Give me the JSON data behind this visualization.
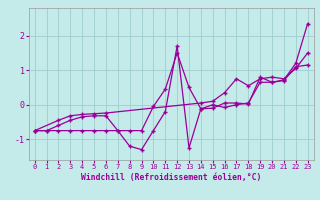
{
  "xlabel": "Windchill (Refroidissement éolien,°C)",
  "xlim": [
    -0.5,
    23.5
  ],
  "ylim": [
    -1.6,
    2.8
  ],
  "yticks": [
    -1,
    0,
    1,
    2
  ],
  "xticks": [
    0,
    1,
    2,
    3,
    4,
    5,
    6,
    7,
    8,
    9,
    10,
    11,
    12,
    13,
    14,
    15,
    16,
    17,
    18,
    19,
    20,
    21,
    22,
    23
  ],
  "bg_color": "#c5eaea",
  "line_color": "#990099",
  "grid_color": "#9ecece",
  "series1_x": [
    0,
    1,
    2,
    3,
    4,
    5,
    6,
    7,
    8,
    9,
    10,
    11,
    12,
    13,
    14,
    15,
    16,
    17,
    18,
    19,
    20,
    21,
    22,
    23
  ],
  "series1_y": [
    -0.75,
    -0.75,
    -0.75,
    -0.75,
    -0.75,
    -0.75,
    -0.75,
    -0.75,
    -0.75,
    -0.75,
    -0.05,
    0.45,
    1.5,
    0.5,
    -0.12,
    -0.1,
    0.05,
    0.05,
    0.02,
    0.8,
    0.65,
    0.7,
    1.1,
    1.15
  ],
  "series2_x": [
    0,
    1,
    2,
    3,
    4,
    5,
    6,
    7,
    8,
    9,
    10,
    11,
    12,
    13,
    14,
    15,
    16,
    17,
    18,
    19,
    20,
    21,
    22,
    23
  ],
  "series2_y": [
    -0.75,
    -0.75,
    -0.6,
    -0.45,
    -0.35,
    -0.32,
    -0.32,
    -0.75,
    -1.2,
    -1.3,
    -0.75,
    -0.2,
    1.7,
    -1.25,
    -0.12,
    0.0,
    -0.08,
    0.0,
    0.05,
    0.65,
    0.65,
    0.72,
    1.2,
    2.35
  ],
  "series3_x": [
    0,
    2,
    3,
    4,
    5,
    6,
    14,
    15,
    16,
    17,
    18,
    19,
    20,
    21,
    22,
    23
  ],
  "series3_y": [
    -0.75,
    -0.45,
    -0.32,
    -0.28,
    -0.26,
    -0.24,
    0.05,
    0.1,
    0.35,
    0.75,
    0.55,
    0.75,
    0.8,
    0.75,
    1.05,
    1.5
  ]
}
